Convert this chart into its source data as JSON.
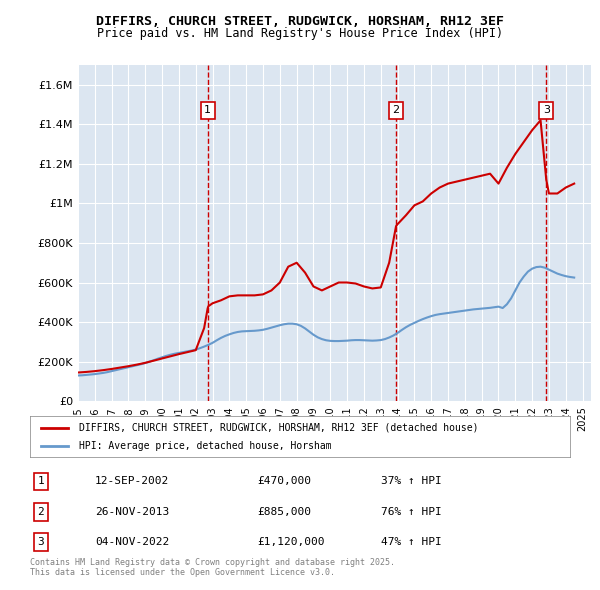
{
  "title": "DIFFIRS, CHURCH STREET, RUDGWICK, HORSHAM, RH12 3EF",
  "subtitle": "Price paid vs. HM Land Registry's House Price Index (HPI)",
  "bg_color": "#dce6f1",
  "plot_bg_color": "#dce6f1",
  "ylim": [
    0,
    1700000
  ],
  "yticks": [
    0,
    200000,
    400000,
    600000,
    800000,
    1000000,
    1200000,
    1400000,
    1600000
  ],
  "ytick_labels": [
    "£0",
    "£200K",
    "£400K",
    "£600K",
    "£800K",
    "£1M",
    "£1.2M",
    "£1.4M",
    "£1.6M"
  ],
  "xlim_start": 1995.0,
  "xlim_end": 2025.5,
  "sale_dates": [
    2002.71,
    2013.91,
    2022.84
  ],
  "sale_prices": [
    470000,
    885000,
    1120000
  ],
  "sale_labels": [
    "1",
    "2",
    "3"
  ],
  "sale_pct": [
    "37%",
    "76%",
    "47%"
  ],
  "sale_info": [
    {
      "label": "1",
      "date": "12-SEP-2002",
      "price": "£470,000",
      "pct": "37% ↑ HPI"
    },
    {
      "label": "2",
      "date": "26-NOV-2013",
      "price": "£885,000",
      "pct": "76% ↑ HPI"
    },
    {
      "label": "3",
      "date": "04-NOV-2022",
      "price": "£1,120,000",
      "pct": "47% ↑ HPI"
    }
  ],
  "legend_house": "DIFFIRS, CHURCH STREET, RUDGWICK, HORSHAM, RH12 3EF (detached house)",
  "legend_hpi": "HPI: Average price, detached house, Horsham",
  "footer": "Contains HM Land Registry data © Crown copyright and database right 2025.\nThis data is licensed under the Open Government Licence v3.0.",
  "house_color": "#cc0000",
  "hpi_color": "#6699cc",
  "vline_color": "#cc0000",
  "hpi_data_x": [
    1995.0,
    1995.25,
    1995.5,
    1995.75,
    1996.0,
    1996.25,
    1996.5,
    1996.75,
    1997.0,
    1997.25,
    1997.5,
    1997.75,
    1998.0,
    1998.25,
    1998.5,
    1998.75,
    1999.0,
    1999.25,
    1999.5,
    1999.75,
    2000.0,
    2000.25,
    2000.5,
    2000.75,
    2001.0,
    2001.25,
    2001.5,
    2001.75,
    2002.0,
    2002.25,
    2002.5,
    2002.75,
    2003.0,
    2003.25,
    2003.5,
    2003.75,
    2004.0,
    2004.25,
    2004.5,
    2004.75,
    2005.0,
    2005.25,
    2005.5,
    2005.75,
    2006.0,
    2006.25,
    2006.5,
    2006.75,
    2007.0,
    2007.25,
    2007.5,
    2007.75,
    2008.0,
    2008.25,
    2008.5,
    2008.75,
    2009.0,
    2009.25,
    2009.5,
    2009.75,
    2010.0,
    2010.25,
    2010.5,
    2010.75,
    2011.0,
    2011.25,
    2011.5,
    2011.75,
    2012.0,
    2012.25,
    2012.5,
    2012.75,
    2013.0,
    2013.25,
    2013.5,
    2013.75,
    2014.0,
    2014.25,
    2014.5,
    2014.75,
    2015.0,
    2015.25,
    2015.5,
    2015.75,
    2016.0,
    2016.25,
    2016.5,
    2016.75,
    2017.0,
    2017.25,
    2017.5,
    2017.75,
    2018.0,
    2018.25,
    2018.5,
    2018.75,
    2019.0,
    2019.25,
    2019.5,
    2019.75,
    2020.0,
    2020.25,
    2020.5,
    2020.75,
    2021.0,
    2021.25,
    2021.5,
    2021.75,
    2022.0,
    2022.25,
    2022.5,
    2022.75,
    2023.0,
    2023.25,
    2023.5,
    2023.75,
    2024.0,
    2024.25,
    2024.5
  ],
  "hpi_data_y": [
    130000,
    131000,
    133000,
    135000,
    137000,
    140000,
    143000,
    147000,
    152000,
    157000,
    162000,
    167000,
    172000,
    177000,
    182000,
    187000,
    193000,
    200000,
    207000,
    215000,
    222000,
    229000,
    235000,
    240000,
    244000,
    248000,
    252000,
    256000,
    261000,
    268000,
    276000,
    285000,
    295000,
    308000,
    320000,
    330000,
    338000,
    345000,
    350000,
    353000,
    354000,
    355000,
    356000,
    358000,
    361000,
    366000,
    372000,
    378000,
    384000,
    389000,
    392000,
    392000,
    389000,
    381000,
    368000,
    352000,
    336000,
    323000,
    314000,
    308000,
    305000,
    304000,
    304000,
    305000,
    306000,
    308000,
    309000,
    309000,
    308000,
    307000,
    306000,
    307000,
    309000,
    314000,
    322000,
    332000,
    345000,
    360000,
    374000,
    386000,
    396000,
    406000,
    415000,
    423000,
    430000,
    436000,
    440000,
    443000,
    446000,
    449000,
    452000,
    455000,
    458000,
    461000,
    464000,
    466000,
    468000,
    470000,
    472000,
    475000,
    478000,
    471000,
    490000,
    520000,
    560000,
    600000,
    630000,
    655000,
    670000,
    678000,
    680000,
    675000,
    665000,
    655000,
    645000,
    638000,
    632000,
    628000,
    625000
  ],
  "house_data_x": [
    1995.0,
    1995.5,
    1996.0,
    1996.5,
    1997.0,
    1997.5,
    1998.0,
    1998.5,
    1999.0,
    1999.5,
    2000.0,
    2000.5,
    2001.0,
    2001.5,
    2002.0,
    2002.5,
    2002.71,
    2002.75,
    2003.0,
    2003.5,
    2004.0,
    2004.5,
    2005.0,
    2005.5,
    2006.0,
    2006.5,
    2007.0,
    2007.5,
    2008.0,
    2008.5,
    2009.0,
    2009.5,
    2010.0,
    2010.5,
    2011.0,
    2011.5,
    2012.0,
    2012.5,
    2013.0,
    2013.5,
    2013.91,
    2014.0,
    2014.5,
    2015.0,
    2015.5,
    2016.0,
    2016.5,
    2017.0,
    2017.5,
    2018.0,
    2018.5,
    2019.0,
    2019.5,
    2020.0,
    2020.5,
    2021.0,
    2021.5,
    2022.0,
    2022.5,
    2022.84,
    2023.0,
    2023.5,
    2024.0,
    2024.5
  ],
  "house_data_y": [
    145000,
    148000,
    152000,
    157000,
    163000,
    170000,
    177000,
    185000,
    194000,
    205000,
    216000,
    227000,
    238000,
    248000,
    258000,
    370000,
    470000,
    480000,
    495000,
    510000,
    530000,
    535000,
    535000,
    535000,
    540000,
    560000,
    600000,
    680000,
    700000,
    650000,
    580000,
    560000,
    580000,
    600000,
    600000,
    595000,
    580000,
    570000,
    575000,
    700000,
    885000,
    895000,
    940000,
    990000,
    1010000,
    1050000,
    1080000,
    1100000,
    1110000,
    1120000,
    1130000,
    1140000,
    1150000,
    1100000,
    1180000,
    1250000,
    1310000,
    1370000,
    1420000,
    1120000,
    1050000,
    1050000,
    1080000,
    1100000
  ]
}
